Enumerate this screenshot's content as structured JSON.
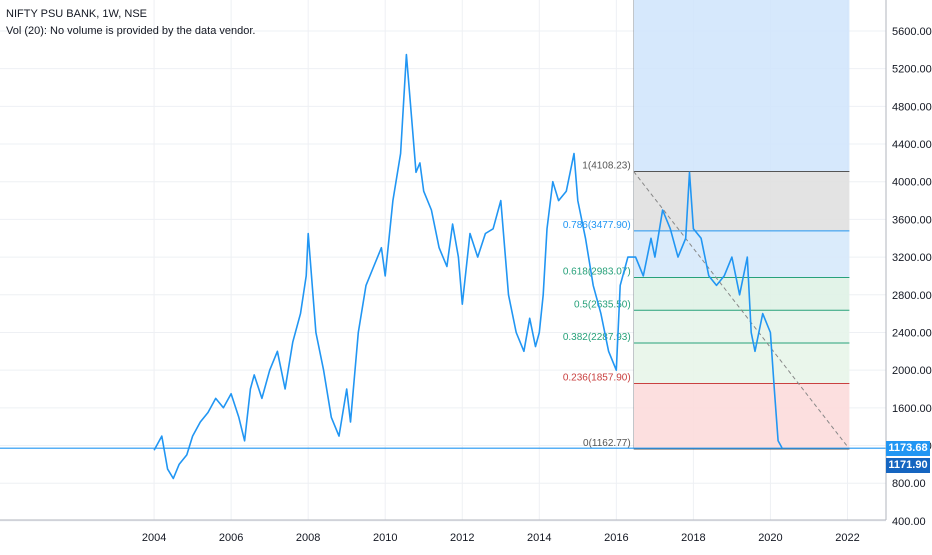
{
  "header": {
    "title": "NIFTY PSU BANK, 1W, NSE",
    "volume_note": "Vol (20): No volume is provided by the data vendor."
  },
  "colors": {
    "series": "#2196f3",
    "grid": "#eef0f4",
    "axis_text": "#131722",
    "fib_1_fill": "#e0e0e0",
    "fib_0786_fill": "#d6e9fb",
    "fib_0618_fill": "#dff2e6",
    "fib_05_fill": "#e6f4ea",
    "fib_0382_fill": "#e8f5e9",
    "fib_0236_fill": "#fcdcdc",
    "fib_ext_fill": "#cfe4fb",
    "fib_line_0786": "#2196f3",
    "fib_line_0618": "#27a17a",
    "fib_line_05": "#27a17a",
    "fib_line_0382": "#27a17a",
    "fib_line_0236": "#c94040",
    "fib_line_0": "#555555",
    "fib_line_1": "#555555"
  },
  "price_badges": {
    "last_price": "1173.68",
    "level_price": "1171.90"
  },
  "chart_data": {
    "type": "line",
    "title": "NIFTY PSU BANK, 1W, NSE",
    "xlabel": "",
    "ylabel": "",
    "x_range": [
      2000.0,
      2023.0
    ],
    "ylim": [
      400,
      5900
    ],
    "x_ticks": [
      "2004",
      "2006",
      "2008",
      "2010",
      "2012",
      "2014",
      "2016",
      "2018",
      "2020",
      "2022"
    ],
    "y_ticks": [
      "400.00",
      "800.00",
      "1200.00",
      "1600.00",
      "2000.00",
      "2400.00",
      "2800.00",
      "3200.00",
      "3600.00",
      "4000.00",
      "4400.00",
      "4800.00",
      "5200.00",
      "5600.00"
    ],
    "series": [
      {
        "x": [
          2004.0,
          2004.2,
          2004.35,
          2004.5,
          2004.65,
          2004.85,
          2005.0,
          2005.2,
          2005.4,
          2005.6,
          2005.8,
          2006.0,
          2006.2,
          2006.35,
          2006.5,
          2006.6,
          2006.8,
          2007.0,
          2007.2,
          2007.4,
          2007.6,
          2007.8,
          2007.95,
          2008.0,
          2008.2,
          2008.4,
          2008.6,
          2008.8,
          2009.0,
          2009.1,
          2009.3,
          2009.5,
          2009.7,
          2009.9,
          2010.0,
          2010.2,
          2010.4,
          2010.55,
          2010.7,
          2010.8,
          2010.9,
          2011.0,
          2011.2,
          2011.4,
          2011.6,
          2011.75,
          2011.9,
          2012.0,
          2012.2,
          2012.4,
          2012.6,
          2012.8,
          2013.0,
          2013.2,
          2013.4,
          2013.6,
          2013.75,
          2013.9,
          2014.0,
          2014.1,
          2014.2,
          2014.35,
          2014.5,
          2014.7,
          2014.9,
          2015.0,
          2015.2,
          2015.4,
          2015.6,
          2015.8,
          2016.0,
          2016.1,
          2016.3,
          2016.5,
          2016.7,
          2016.9,
          2017.0,
          2017.2,
          2017.4,
          2017.6,
          2017.8,
          2017.9,
          2018.0,
          2018.2,
          2018.4,
          2018.6,
          2018.8,
          2019.0,
          2019.2,
          2019.4,
          2019.5,
          2019.6,
          2019.8,
          2020.0,
          2020.1,
          2020.2,
          2020.3
        ],
        "values": [
          1150,
          1300,
          950,
          850,
          1000,
          1100,
          1300,
          1450,
          1550,
          1700,
          1600,
          1750,
          1500,
          1250,
          1800,
          1950,
          1700,
          2000,
          2200,
          1800,
          2300,
          2600,
          3000,
          3450,
          2400,
          2000,
          1500,
          1300,
          1800,
          1450,
          2400,
          2900,
          3100,
          3300,
          3000,
          3800,
          4300,
          5350,
          4600,
          4100,
          4200,
          3900,
          3700,
          3300,
          3100,
          3550,
          3200,
          2700,
          3450,
          3200,
          3450,
          3500,
          3800,
          2800,
          2400,
          2200,
          2550,
          2250,
          2400,
          2800,
          3500,
          4000,
          3800,
          3900,
          4300,
          3800,
          3400,
          2900,
          2600,
          2200,
          2000,
          2900,
          3200,
          3200,
          3000,
          3400,
          3200,
          3700,
          3500,
          3200,
          3400,
          4100,
          3500,
          3400,
          3000,
          2900,
          3000,
          3200,
          2800,
          3200,
          2400,
          2200,
          2600,
          2400,
          1800,
          1250,
          1175
        ]
      }
    ],
    "fibonacci": [
      {
        "level": "1",
        "value": 4108.23,
        "label": "1(4108.23)"
      },
      {
        "level": "0.786",
        "value": 3477.9,
        "label": "0.786(3477.90)"
      },
      {
        "level": "0.618",
        "value": 2983.07,
        "label": "0.618(2983.07)"
      },
      {
        "level": "0.5",
        "value": 2635.5,
        "label": "0.5(2635.50)"
      },
      {
        "level": "0.382",
        "value": 2287.93,
        "label": "0.382(2287.93)"
      },
      {
        "level": "0.236",
        "value": 1857.9,
        "label": "0.236(1857.90)"
      },
      {
        "level": "0",
        "value": 1162.77,
        "label": "0(1162.77)"
      }
    ],
    "fib_extension_top": 5940,
    "fib_x_range": [
      2016.45,
      2022.05
    ],
    "horizontal_line": 1171.9
  }
}
